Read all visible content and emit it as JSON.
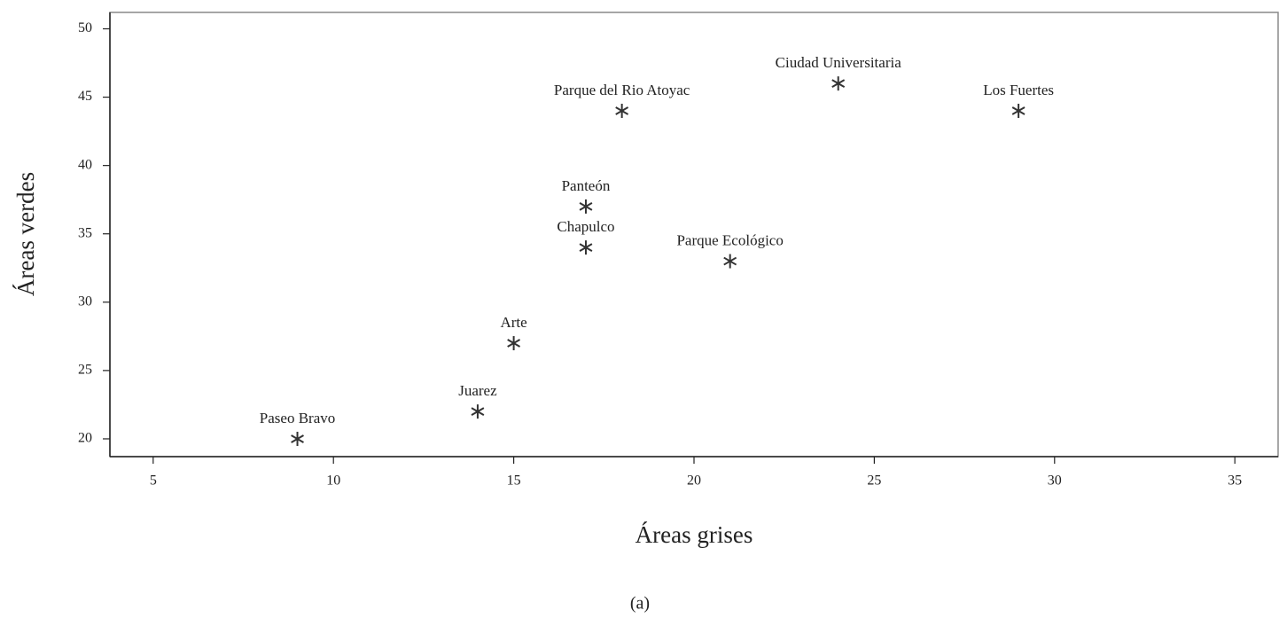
{
  "chart_data": {
    "type": "scatter",
    "x_label": "Áreas grises",
    "y_label": "Áreas verdes",
    "caption": "(a)",
    "labels": [
      "Paseo Bravo",
      "Juarez",
      "Arte",
      "Chapulco",
      "Panteón",
      "Parque del Rio Atoyac",
      "Parque Ecológico",
      "Ciudad Universitaria",
      "Los Fuertes"
    ],
    "x": [
      9,
      14,
      15,
      17,
      17,
      18,
      21,
      24,
      29
    ],
    "y": [
      20,
      22,
      27,
      34,
      37,
      44,
      33,
      46,
      44
    ],
    "color": "#333333",
    "xlim": [
      3.8,
      36.2
    ],
    "xticks": [
      5,
      10,
      15,
      20,
      25,
      30,
      35
    ],
    "ylim": [
      18.7,
      51.2
    ],
    "yticks": [
      20,
      25,
      30,
      35,
      40,
      45,
      50
    ]
  }
}
